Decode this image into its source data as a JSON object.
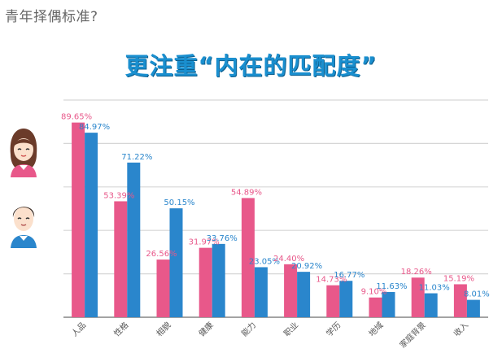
{
  "page": {
    "heading": "青年择偶标准?"
  },
  "chart_data": {
    "type": "bar",
    "title": "更注重“内在的匹配度”",
    "categories": [
      "人品",
      "性格",
      "相貌",
      "健康",
      "能力",
      "职业",
      "学历",
      "地域",
      "家庭背景",
      "收入"
    ],
    "series": [
      {
        "values": [
          89.65,
          53.39,
          26.56,
          31.97,
          54.89,
          24.4,
          14.73,
          9.1,
          18.26,
          15.19
        ],
        "label_text": [
          "89.65%",
          "53.39%",
          "26.56%",
          "31.97%",
          "54.89%",
          "24.40%",
          "14.73%",
          "9.10%",
          "18.26%",
          "15.19%"
        ],
        "color": "#e8588a",
        "icon": "woman-avatar-icon"
      },
      {
        "values": [
          84.97,
          71.22,
          50.15,
          33.76,
          23.05,
          20.92,
          16.77,
          11.63,
          11.03,
          8.01
        ],
        "label_text": [
          "84.97%",
          "71.22%",
          "50.15%",
          "33.76%",
          "23.05%",
          "20.92%",
          "16.77%",
          "11.63%",
          "11.03%",
          "8.01%"
        ],
        "color": "#2a86cc",
        "icon": "man-avatar-icon"
      }
    ],
    "ylim": [
      0,
      100
    ],
    "grid": true,
    "colors": {
      "gridline": "#d6d6d6",
      "axis": "#888888",
      "title": "#1a8fcf",
      "label": "#555555"
    }
  }
}
